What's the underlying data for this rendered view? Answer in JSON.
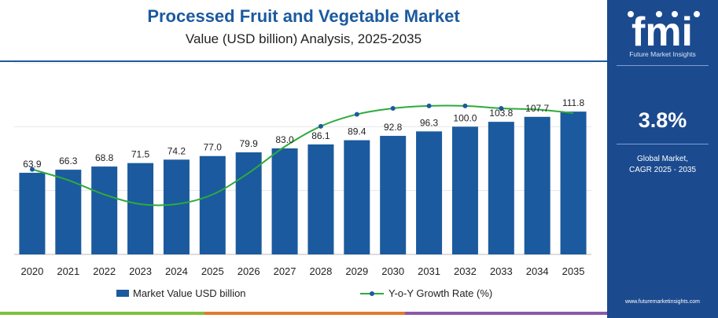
{
  "chart_data": {
    "type": "bar",
    "title": "Processed Fruit and Vegetable Market",
    "subtitle": "Value (USD billion) Analysis, 2025-2035",
    "categories": [
      "2020",
      "2021",
      "2022",
      "2023",
      "2024",
      "2025",
      "2026",
      "2027",
      "2028",
      "2029",
      "2030",
      "2031",
      "2032",
      "2033",
      "2034",
      "2035"
    ],
    "series": [
      {
        "name": "Market Value USD billion",
        "type": "bar",
        "values": [
          63.9,
          66.3,
          68.8,
          71.5,
          74.2,
          77.0,
          79.9,
          83.0,
          86.1,
          89.4,
          92.8,
          96.3,
          100.0,
          103.8,
          107.7,
          111.8
        ],
        "labels": [
          "63.9",
          "66.3",
          "68.8",
          "71.5",
          "74.2",
          "77.0",
          "79.9",
          "83.0",
          "86.1",
          "89.4",
          "92.8",
          "96.3",
          "100.0",
          "103.8",
          "107.7",
          "111.8"
        ],
        "color": "#1b5a9e"
      },
      {
        "name": "Y-o-Y Growth Rate (%)",
        "type": "line",
        "values": [
          3.71,
          3.62,
          3.5,
          3.42,
          3.42,
          3.5,
          3.68,
          3.9,
          4.07,
          4.17,
          4.22,
          4.24,
          4.24,
          4.22,
          4.21,
          4.18
        ],
        "color": "#2eaa3c"
      }
    ],
    "ylim": [
      0,
      150
    ],
    "growth_ylim": [
      3.0,
      4.6
    ],
    "grid": true,
    "legend": "bottom-center"
  },
  "sidebar": {
    "logo": "fmi",
    "brand_name": "Future Market Insights",
    "cagr_value": "3.8%",
    "cagr_label_line1": "Global Market,",
    "cagr_label_line2": "CAGR 2025 - 2035",
    "website": "www.futuremarketinsights.com",
    "background_color": "#1b4a8f"
  },
  "bottom_strip_colors": [
    "#7fbf3f",
    "#e07a2e",
    "#8a5aa8"
  ]
}
